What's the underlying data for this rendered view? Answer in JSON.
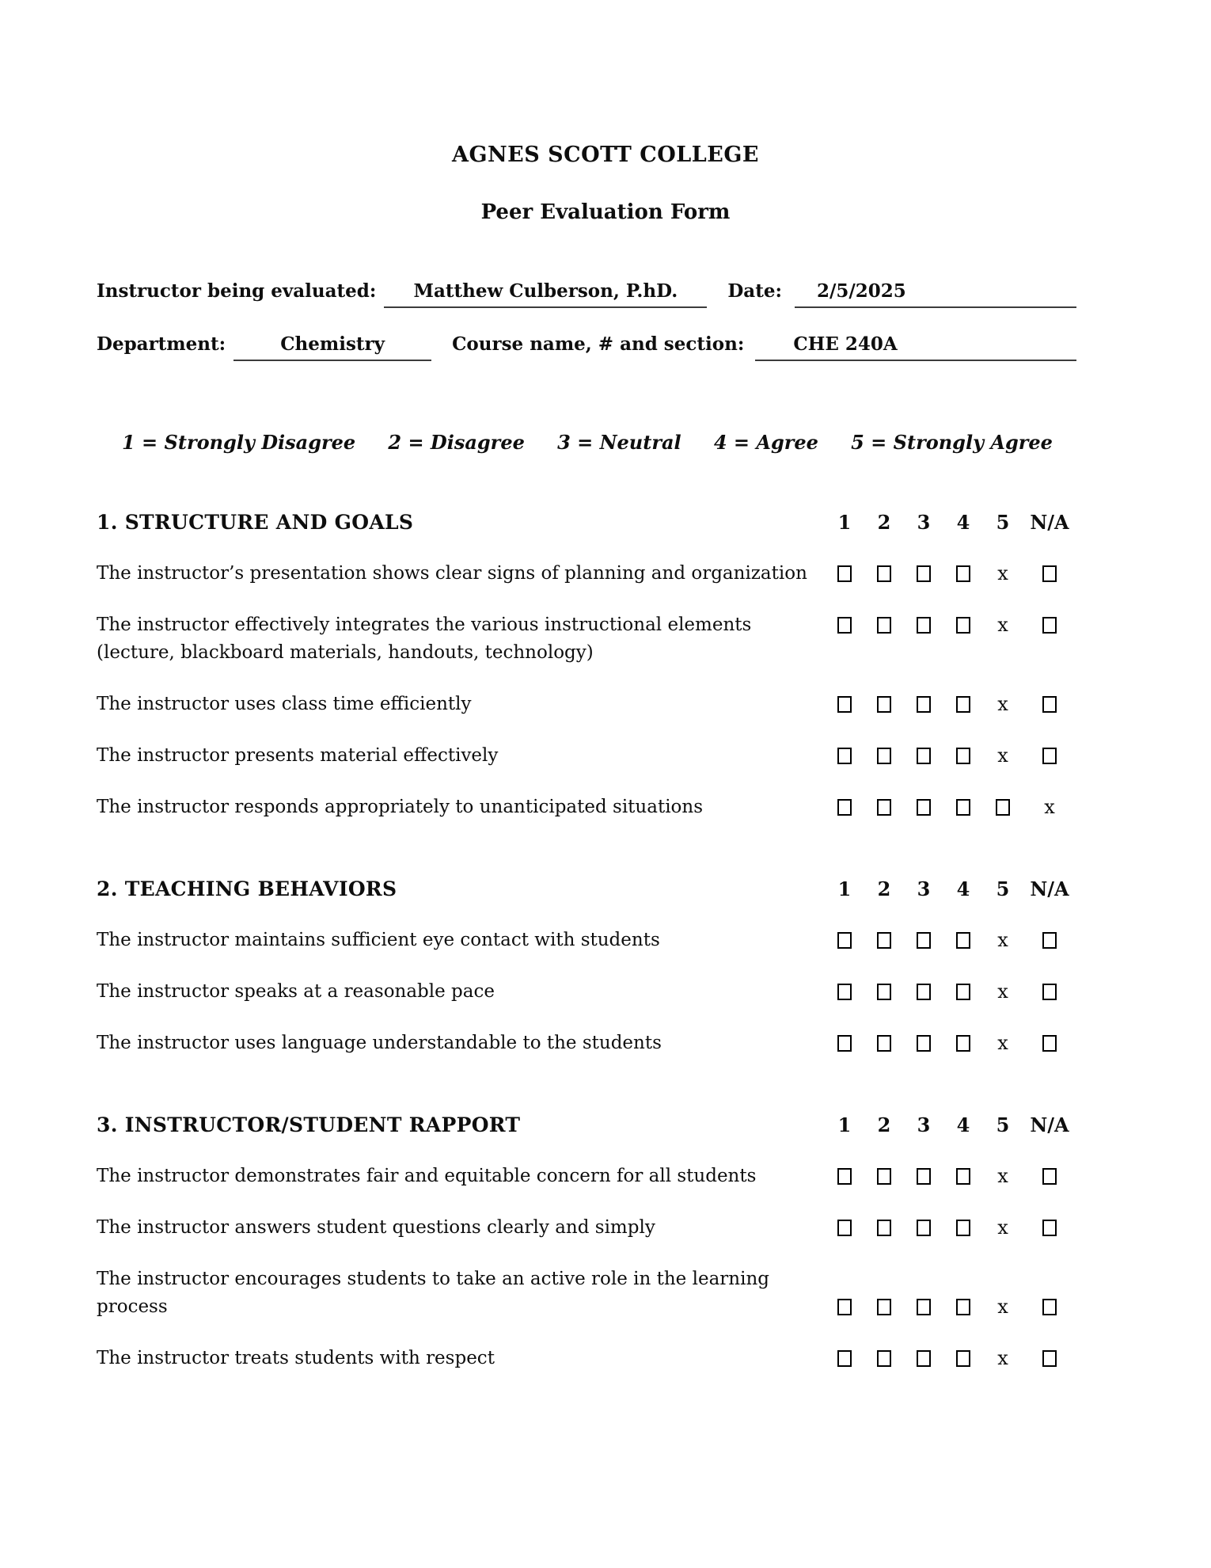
{
  "header": {
    "college": "AGNES SCOTT COLLEGE",
    "form_title": "Peer Evaluation Form"
  },
  "fields": {
    "instructor": {
      "label": "Instructor being evaluated:",
      "value": "Matthew Culberson, P.hD."
    },
    "date": {
      "label": "Date:",
      "value": "2/5/2025"
    },
    "department": {
      "label": "Department:",
      "value": "Chemistry"
    },
    "course": {
      "label": "Course name, # and section:",
      "value": "CHE 240A"
    }
  },
  "scale_legend": [
    "1 = Strongly Disagree",
    "2 = Disagree",
    "3 = Neutral",
    "4 = Agree",
    "5 = Strongly Agree"
  ],
  "rating_columns": [
    "1",
    "2",
    "3",
    "4",
    "5",
    "N/A"
  ],
  "mark_glyph": "x",
  "sections": [
    {
      "title": "1. STRUCTURE AND GOALS",
      "rows": [
        {
          "label": "The instructor’s presentation shows clear signs of planning and organization",
          "rating": "5"
        },
        {
          "label": "The instructor effectively integrates the various instructional elements\n(lecture, blackboard materials, handouts, technology)",
          "rating": "5",
          "cells_align": "top"
        },
        {
          "label": "The instructor uses class time efficiently",
          "rating": "5"
        },
        {
          "label": "The instructor presents material effectively",
          "rating": "5"
        },
        {
          "label": "The instructor responds appropriately to unanticipated situations",
          "rating": "N/A"
        }
      ]
    },
    {
      "title": "2. TEACHING BEHAVIORS",
      "rows": [
        {
          "label": "The instructor maintains sufficient eye contact with students",
          "rating": "5"
        },
        {
          "label": "The instructor speaks at a reasonable pace",
          "rating": "5"
        },
        {
          "label": "The instructor uses language understandable to the students",
          "rating": "5"
        }
      ]
    },
    {
      "title": "3. INSTRUCTOR/STUDENT RAPPORT",
      "rows": [
        {
          "label": "The instructor demonstrates fair and equitable concern for all students",
          "rating": "5"
        },
        {
          "label": "The instructor answers student questions clearly and simply",
          "rating": "5"
        },
        {
          "label": "The instructor encourages students to take an active role in the learning\nprocess",
          "rating": "5",
          "cells_align": "bottom"
        },
        {
          "label": "The instructor treats students with respect",
          "rating": "5"
        }
      ]
    }
  ]
}
